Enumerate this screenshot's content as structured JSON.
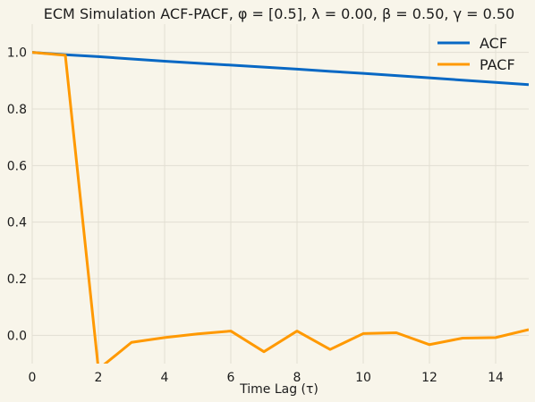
{
  "chart_data": {
    "type": "line",
    "title": "ECM Simulation ACF-PACF, φ = [0.5], λ = 0.00, β = 0.50, γ = 0.50",
    "xlabel": "Time Lag (τ)",
    "ylabel": "",
    "xlim": [
      0,
      15
    ],
    "ylim": [
      -0.1,
      1.1
    ],
    "xticks": [
      0,
      2,
      4,
      6,
      8,
      10,
      12,
      14
    ],
    "yticks": [
      0.0,
      0.2,
      0.4,
      0.6,
      0.8,
      1.0
    ],
    "xtick_labels": [
      "0",
      "2",
      "4",
      "6",
      "8",
      "10",
      "12",
      "14"
    ],
    "ytick_labels": [
      "0.0",
      "0.2",
      "0.4",
      "0.6",
      "0.8",
      "1.0"
    ],
    "grid": true,
    "legend_position": "top-right",
    "series": [
      {
        "name": "ACF",
        "color": "#0868c4",
        "x": [
          0,
          1,
          2,
          3,
          4,
          5,
          6,
          7,
          8,
          9,
          10,
          11,
          12,
          13,
          14,
          15
        ],
        "y": [
          1.0,
          0.992,
          0.985,
          0.977,
          0.969,
          0.962,
          0.955,
          0.948,
          0.941,
          0.933,
          0.926,
          0.918,
          0.91,
          0.902,
          0.894,
          0.886
        ]
      },
      {
        "name": "PACF",
        "color": "#ff9900",
        "x": [
          0,
          1,
          2,
          3,
          4,
          5,
          6,
          7,
          8,
          9,
          10,
          11,
          12,
          13,
          14,
          15
        ],
        "y": [
          1.0,
          0.99,
          -0.12,
          -0.025,
          -0.008,
          0.005,
          0.015,
          -0.058,
          0.015,
          -0.05,
          0.006,
          0.009,
          -0.033,
          -0.01,
          -0.008,
          0.02
        ]
      }
    ]
  }
}
